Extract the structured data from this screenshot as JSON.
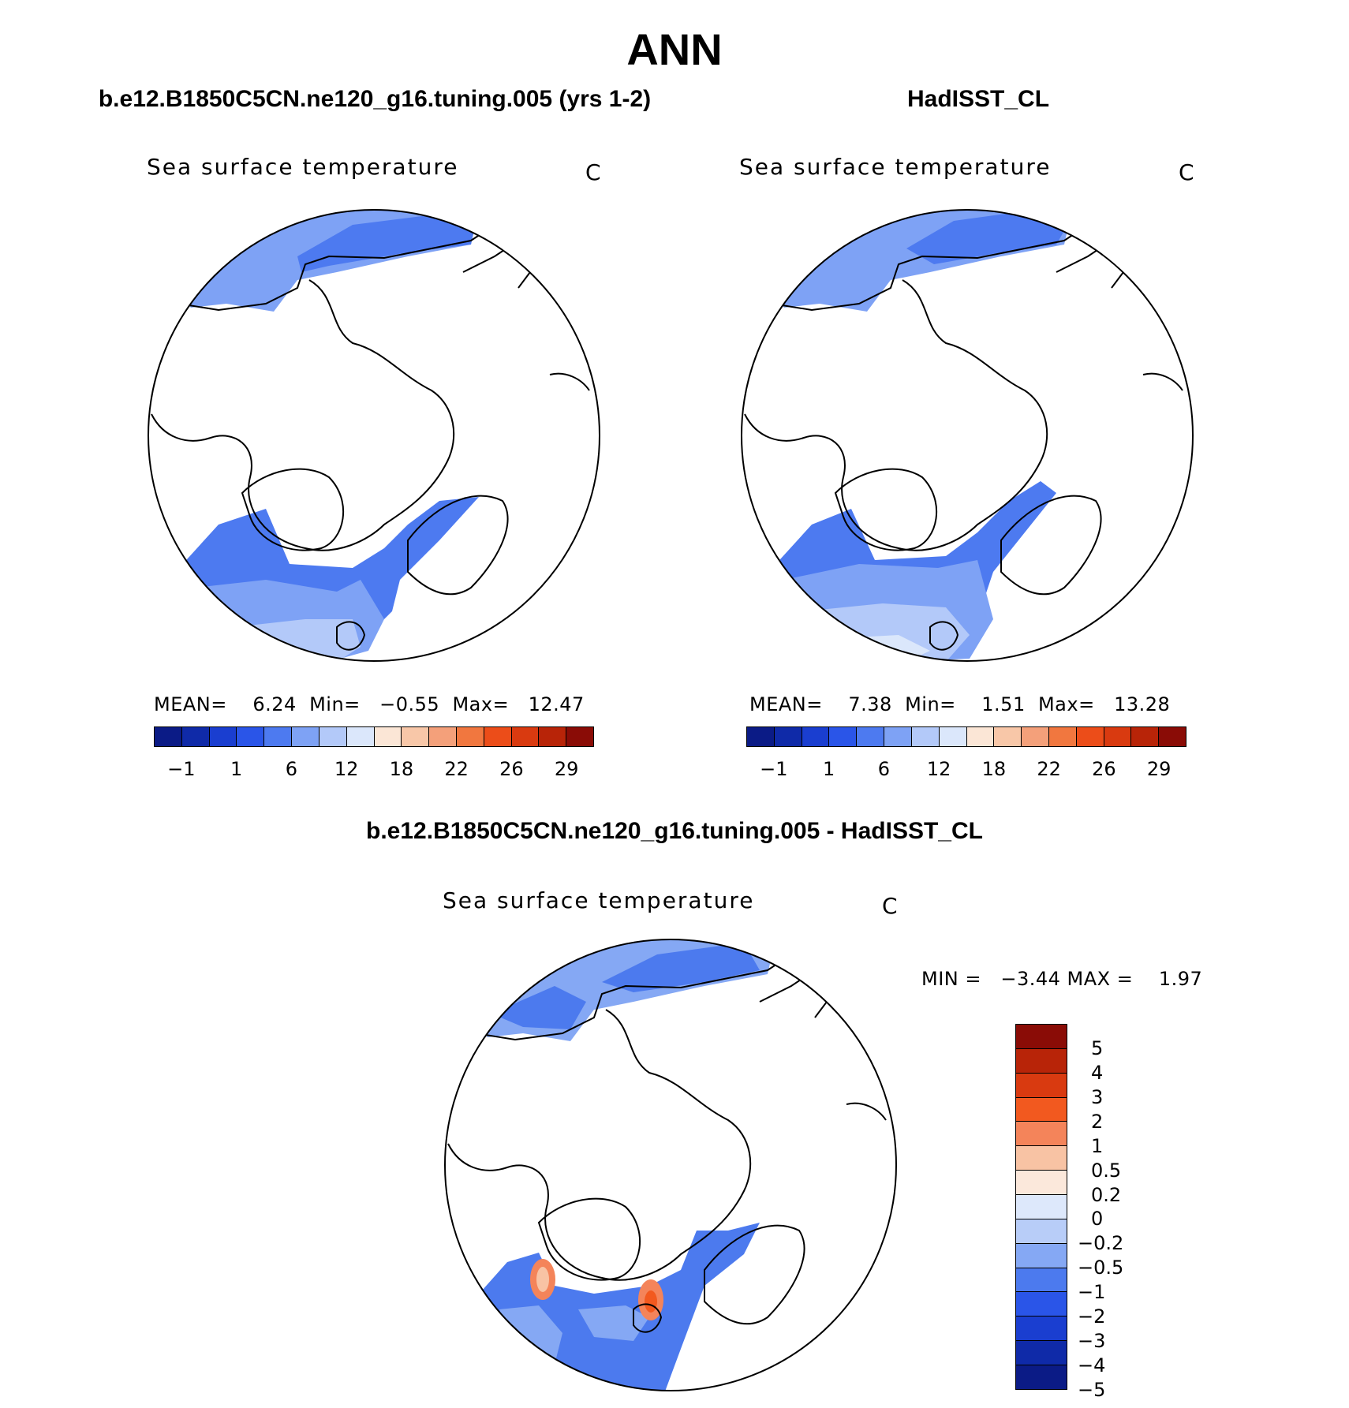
{
  "title": "ANN",
  "panels": {
    "model": {
      "case_title": "b.e12.B1850C5CN.ne120_g16.tuning.005 (yrs 1-2)",
      "variable": "Sea surface temperature",
      "units": "C",
      "stats": "MEAN=    6.24  Min=   −0.55  Max=   12.47"
    },
    "obs": {
      "case_title": "HadISST_CL",
      "variable": "Sea surface temperature",
      "units": "C",
      "stats": "MEAN=    7.38  Min=    1.51  Max=   13.28"
    },
    "diff": {
      "case_title": "b.e12.B1850C5CN.ne120_g16.tuning.005 - HadISST_CL",
      "variable": "Sea surface temperature",
      "units": "C",
      "stats": "MIN =   −3.44 MAX =    1.97"
    }
  },
  "colorbar_abs": {
    "colors": [
      "#0b1b86",
      "#0f2aa8",
      "#1a3ed0",
      "#2a55e8",
      "#4d7af0",
      "#7ea2f5",
      "#b3c9f9",
      "#dbe7fb",
      "#fbe6d6",
      "#f8c7a8",
      "#f4a07a",
      "#f1773f",
      "#ec4d19",
      "#d93a10",
      "#b82408",
      "#8a0c06"
    ],
    "ticks": [
      "−1",
      "1",
      "6",
      "12",
      "18",
      "22",
      "26",
      "29"
    ]
  },
  "colorbar_diff": {
    "colors": [
      "#8a0c06",
      "#b82408",
      "#d93a10",
      "#f2591f",
      "#f4845a",
      "#f8c3a4",
      "#fbe8db",
      "#dde8fb",
      "#b8cdf8",
      "#85a8f4",
      "#4c7aee",
      "#2a55e8",
      "#1a3ed0",
      "#0f2aa8",
      "#0b1b86"
    ],
    "ticks": [
      "5",
      "4",
      "3",
      "2",
      "1",
      "0.5",
      "0.2",
      "0",
      "−0.2",
      "−0.5",
      "−1",
      "−2",
      "−3",
      "−4",
      "−5"
    ]
  }
}
